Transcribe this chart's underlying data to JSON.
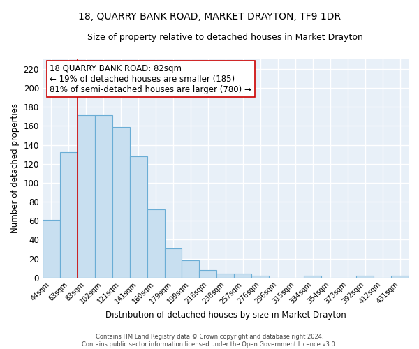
{
  "title": "18, QUARRY BANK ROAD, MARKET DRAYTON, TF9 1DR",
  "subtitle": "Size of property relative to detached houses in Market Drayton",
  "xlabel": "Distribution of detached houses by size in Market Drayton",
  "ylabel": "Number of detached properties",
  "categories": [
    "44sqm",
    "63sqm",
    "83sqm",
    "102sqm",
    "121sqm",
    "141sqm",
    "160sqm",
    "179sqm",
    "199sqm",
    "218sqm",
    "238sqm",
    "257sqm",
    "276sqm",
    "296sqm",
    "315sqm",
    "334sqm",
    "354sqm",
    "373sqm",
    "392sqm",
    "412sqm",
    "431sqm"
  ],
  "values": [
    61,
    132,
    171,
    171,
    159,
    128,
    72,
    31,
    18,
    8,
    4,
    4,
    2,
    0,
    0,
    2,
    0,
    0,
    2,
    0,
    2
  ],
  "bar_color": "#c8dff0",
  "bar_edge_color": "#6aadd5",
  "vline_color": "#cc0000",
  "annotation_text": "18 QUARRY BANK ROAD: 82sqm\n← 19% of detached houses are smaller (185)\n81% of semi-detached houses are larger (780) →",
  "annotation_box_color": "white",
  "annotation_box_edge": "#cc0000",
  "annotation_fontsize": 8.5,
  "ylim": [
    0,
    230
  ],
  "yticks": [
    0,
    20,
    40,
    60,
    80,
    100,
    120,
    140,
    160,
    180,
    200,
    220
  ],
  "background_color": "#ffffff",
  "plot_bg_color": "#e8f0f8",
  "grid_color": "#ffffff",
  "title_fontsize": 10,
  "subtitle_fontsize": 9,
  "footer_text": "Contains HM Land Registry data © Crown copyright and database right 2024.\nContains public sector information licensed under the Open Government Licence v3.0."
}
